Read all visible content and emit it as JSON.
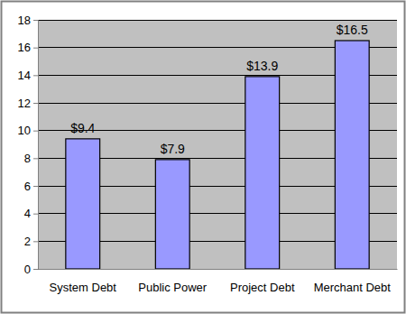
{
  "chart_data": {
    "type": "bar",
    "categories": [
      "System Debt",
      "Public Power",
      "Project Debt",
      "Merchant Debt"
    ],
    "values": [
      9.4,
      7.9,
      13.9,
      16.5
    ],
    "value_labels": [
      "$9.4",
      "$7.9",
      "$13.9",
      "$16.5"
    ],
    "color": "#9999ff",
    "ylim": [
      0,
      18
    ],
    "yticks": [
      0,
      2,
      4,
      6,
      8,
      10,
      12,
      14,
      16,
      18
    ],
    "grid": true,
    "data_labels": true
  }
}
